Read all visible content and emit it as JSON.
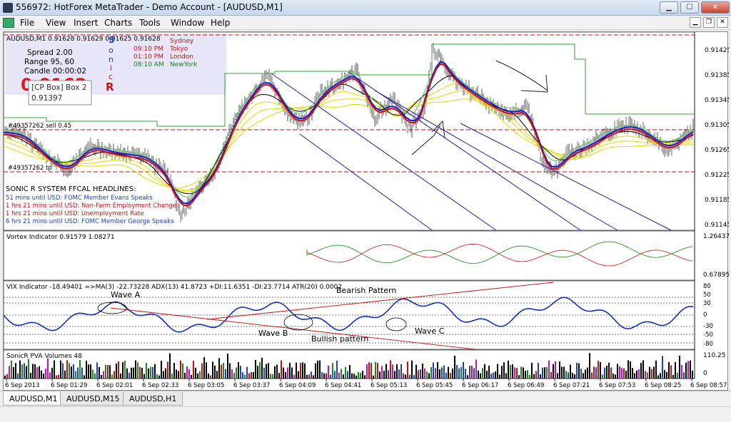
{
  "window": {
    "title": "556972: HotForex MetaTrader - Demo Account - [AUDUSD,M1]",
    "min_label": "▁",
    "max_label": "☐",
    "close_label": "✕"
  },
  "menu": {
    "items": [
      "File",
      "View",
      "Insert",
      "Charts",
      "Tools",
      "Window",
      "Help"
    ],
    "mdi_min": "▁",
    "mdi_restore": "❐",
    "mdi_close": "✕"
  },
  "chart": {
    "header": "AUDUSD,M1  0.91628 0.91629 0.91625 0.91628",
    "info_lines": [
      "Spread  2.00",
      "Range   95, 60",
      "Candle  00:00:02"
    ],
    "big_price": "0.9163",
    "sonic_letters": [
      "S",
      "o",
      "n",
      "i",
      "c"
    ],
    "sonic_r": "R",
    "sessions": [
      {
        "time": "",
        "name": "Sydney",
        "color": "#d01010"
      },
      {
        "time": "09:10 PM",
        "name": "Tokyo",
        "color": "#d01010"
      },
      {
        "time": "01:10 PM",
        "name": "London",
        "color": "#d01010"
      },
      {
        "time": "08:10 AM",
        "name": "NewYork",
        "color": "#108010"
      }
    ],
    "tooltip_title": "[CP Box] Box 2",
    "tooltip_value": "0.91397",
    "sell_label": "#49357262 sell 0.45",
    "tp_label": "#49357262 tp",
    "headline_title": "SONIC R SYSTEM  FFCAL HEADLINES:",
    "headlines": [
      {
        "text": "51 mins until USD: FOMC Member Evans Speaks",
        "color": "#1a3fc8"
      },
      {
        "text": "1 hrs 21 mins until USD: Non-Farm Employment Change",
        "color": "#d01010"
      },
      {
        "text": "1 hrs 21 mins until USD: Unemployment Rate",
        "color": "#d01010"
      },
      {
        "text": "6 hrs 21 mins until USD: FOMC Member George Speaks",
        "color": "#1a3fc8"
      }
    ],
    "price_ticks": [
      "0.91425",
      "0.91385",
      "0.91345",
      "0.91305",
      "0.91265",
      "0.91225",
      "0.91185",
      "0.91145"
    ],
    "current_price_label": "0.91628"
  },
  "vortex": {
    "header": "Vortex Indicator 0.91579 1.08271",
    "ticks": [
      "1.26437",
      "0.67895"
    ]
  },
  "vix": {
    "header": "VIX Indicator -18.49401  =>MA(3) -22.73228  ADX(13) 41.8723 +DI:11.6351 -DI:23.7714  ATR(20) 0.0002",
    "ticks": [
      "80",
      "50",
      "30",
      "0",
      "-30",
      "-50",
      "-80"
    ],
    "annotations": {
      "wave_a": "Wave A",
      "wave_b": "Wave B",
      "wave_c": "Wave C",
      "bearish": "Bearish Pattern",
      "bullish": "Bullish pattern"
    }
  },
  "pva": {
    "header": "SonicR PVA  Volumes 48",
    "ticks": [
      "110.25",
      "0"
    ]
  },
  "time_axis": [
    "6 Sep 2013",
    "6 Sep 01:29",
    "6 Sep 02:01",
    "6 Sep 02:33",
    "6 Sep 03:05",
    "6 Sep 03:37",
    "6 Sep 04:09",
    "6 Sep 04:41",
    "6 Sep 05:13",
    "6 Sep 05:45",
    "6 Sep 06:17",
    "6 Sep 06:49",
    "6 Sep 07:21",
    "6 Sep 07:53",
    "6 Sep 08:25",
    "6 Sep 08:57"
  ],
  "tabs": [
    "AUDUSD,M1",
    "AUDUSD,M15",
    "AUDUSD,H1"
  ],
  "colors": {
    "bull": "#0a8a0a",
    "bear": "#d01010",
    "ema_blue": "#1a1ad0",
    "ema_red": "#d01010",
    "ema_green": "#50c850",
    "ema_yellow": "#e8d800",
    "vix": "#1030c0"
  }
}
